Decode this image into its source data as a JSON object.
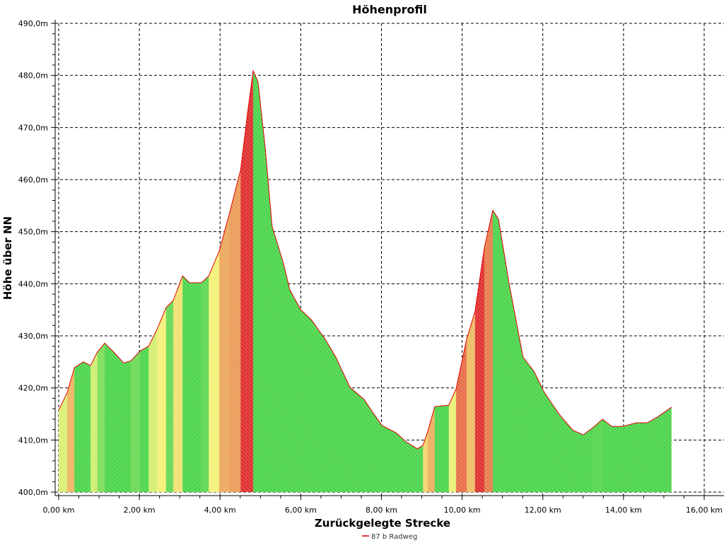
{
  "chart_data": {
    "type": "area",
    "title": "Höhenprofil",
    "xlabel": "Zurückgelegte Strecke",
    "ylabel": "Höhe über NN",
    "xlim": [
      0,
      16
    ],
    "ylim": [
      400,
      490
    ],
    "x_ticks": [
      "0,00 km",
      "2,00 km",
      "4,00 km",
      "6,00 km",
      "8,00 km",
      "10,00 km",
      "12,00 km",
      "14,00 km",
      "16,00 km"
    ],
    "y_ticks": [
      "400,0m",
      "410,0m",
      "420,0m",
      "430,0m",
      "440,0m",
      "450,0m",
      "460,0m",
      "470,0m",
      "480,0m",
      "490,0m"
    ],
    "grid": true,
    "legend_position": "bottom",
    "fill_coloring": "green on flat or downhill sections, yellow on moderate climbs, red on steep climbs",
    "colors": {
      "line": "#e00000",
      "flat": "#4cd44c",
      "moderate": "#f4f47a",
      "steep": "#e03030"
    },
    "series": [
      {
        "name": "87 b Radweg",
        "x": [
          0,
          0.21,
          0.39,
          0.61,
          0.79,
          0.96,
          1.14,
          1.35,
          1.61,
          1.79,
          2.02,
          2.23,
          2.44,
          2.66,
          2.84,
          3.07,
          3.24,
          3.54,
          3.72,
          3.98,
          4.24,
          4.51,
          4.68,
          4.82,
          4.94,
          5.12,
          5.29,
          5.56,
          5.73,
          6.0,
          6.26,
          6.61,
          6.87,
          7.22,
          7.57,
          7.75,
          8.01,
          8.36,
          8.62,
          8.89,
          9.03,
          9.15,
          9.32,
          9.67,
          9.85,
          10.11,
          10.32,
          10.55,
          10.76,
          10.9,
          11.16,
          11.51,
          11.78,
          12.04,
          12.39,
          12.74,
          13.0,
          13.23,
          13.48,
          13.71,
          13.97,
          14.32,
          14.58,
          14.84,
          15.19
        ],
        "y": [
          415.7,
          419.1,
          423.9,
          425,
          424.3,
          426.9,
          428.6,
          427,
          424.8,
          425.2,
          427.1,
          428,
          431.3,
          435.4,
          436.8,
          441.5,
          440.2,
          440.2,
          441.5,
          446.3,
          453.7,
          461.9,
          472.7,
          480.9,
          478.8,
          466,
          451,
          444.2,
          438.8,
          435,
          433.1,
          429.3,
          425.9,
          420.1,
          417.8,
          415.7,
          412.8,
          411.4,
          409.6,
          408.3,
          409,
          411.7,
          416.4,
          416.7,
          419.8,
          429.3,
          434.7,
          446.9,
          454.1,
          452.4,
          440.2,
          425.9,
          423.2,
          419.1,
          415.1,
          411.9,
          411,
          412.3,
          414,
          412.6,
          412.6,
          413.3,
          413.3,
          414.4,
          416.3
        ]
      }
    ]
  }
}
